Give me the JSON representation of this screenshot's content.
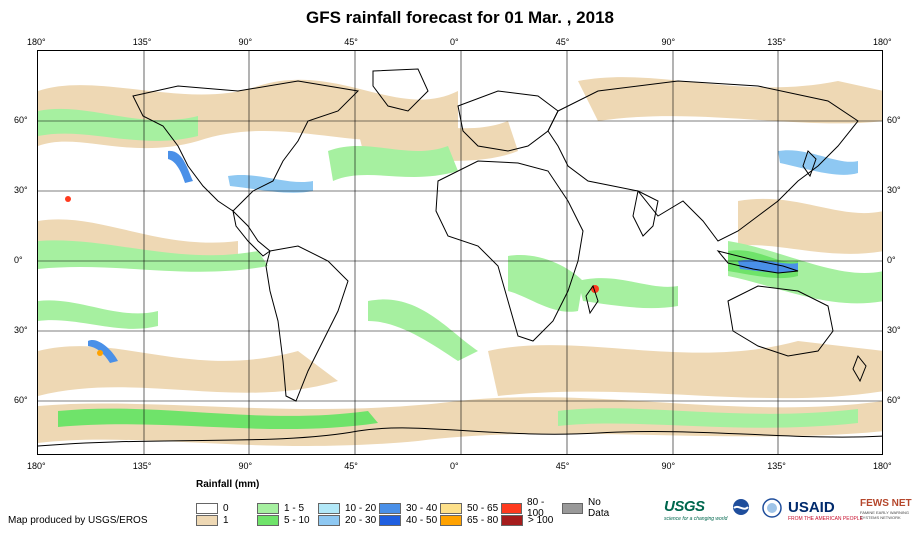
{
  "title": "GFS rainfall forecast for 01 Mar. , 2018",
  "longitude_ticks": [
    "180°",
    "135°",
    "90°",
    "45°",
    "0°",
    "45°",
    "90°",
    "135°",
    "180°"
  ],
  "latitude_ticks": [
    "60°",
    "30°",
    "0°",
    "30°",
    "60°"
  ],
  "legend": {
    "title": "Rainfall (mm)",
    "items": [
      {
        "label": "0",
        "color": "#ffffff"
      },
      {
        "label": "1 - 5",
        "color": "#a6f0a0"
      },
      {
        "label": "10 - 20",
        "color": "#b2e8f8"
      },
      {
        "label": "30 - 40",
        "color": "#4a90e8"
      },
      {
        "label": "50 - 65",
        "color": "#fde08a"
      },
      {
        "label": "80 - 100",
        "color": "#ff3a1e"
      },
      {
        "label": "No Data",
        "color": "#999999"
      },
      {
        "label": "1",
        "color": "#eed8b4"
      },
      {
        "label": "5 - 10",
        "color": "#6fe36a"
      },
      {
        "label": "20 - 30",
        "color": "#8ec8f2"
      },
      {
        "label": "40 - 50",
        "color": "#1f5fe0"
      },
      {
        "label": "65 - 80",
        "color": "#ffa200"
      },
      {
        "label": "> 100",
        "color": "#a51c1c"
      }
    ]
  },
  "credit": "Map produced by USGS/EROS",
  "logos": {
    "usgs": "USGS",
    "usgs_tagline": "science for a changing world",
    "usaid": "USAID",
    "usaid_tagline": "FROM THE AMERICAN PEOPLE",
    "fews": "FEWS NET",
    "fews_tagline": "FAMINE EARLY WARNING SYSTEMS NETWORK"
  },
  "colors": {
    "land_outline": "#000000",
    "grid": "#000000",
    "rain_light": "#eed8b4",
    "rain_low": "#a6f0a0",
    "rain_mid": "#6fe36a",
    "rain_blue": "#8ec8f2"
  }
}
